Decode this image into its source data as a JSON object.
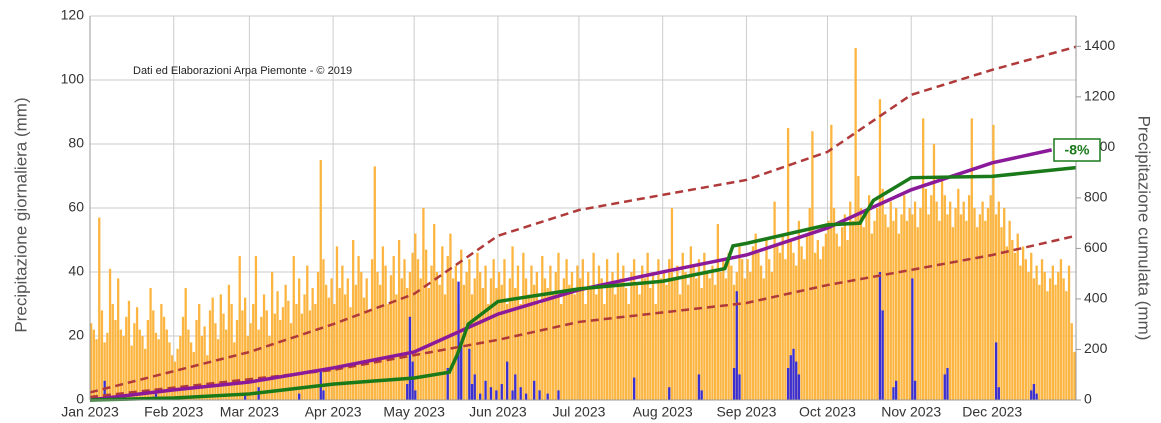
{
  "chart_data": {
    "type": "bar",
    "annotations": [
      "Dati ed Elaborazioni Arpa Piemonte - © 2019",
      "-8%"
    ],
    "ylabel": "Precipitazione giornaliera (mm)",
    "y2label": "Precipitazione cumulata (mm)",
    "xlim": [
      0,
      365
    ],
    "xticks": [
      {
        "value": 0,
        "label": "Jan 2023"
      },
      {
        "value": 31,
        "label": "Feb 2023"
      },
      {
        "value": 59,
        "label": "Mar 2023"
      },
      {
        "value": 90,
        "label": "Apr 2023"
      },
      {
        "value": 120,
        "label": "May 2023"
      },
      {
        "value": 151,
        "label": "Jun 2023"
      },
      {
        "value": 181,
        "label": "Jul 2023"
      },
      {
        "value": 212,
        "label": "Aug 2023"
      },
      {
        "value": 243,
        "label": "Sep 2023"
      },
      {
        "value": 273,
        "label": "Oct 2023"
      },
      {
        "value": 304,
        "label": "Nov 2023"
      },
      {
        "value": 334,
        "label": "Dec 2023"
      }
    ],
    "ylim": [
      0,
      120
    ],
    "yticks": [
      0,
      20,
      40,
      60,
      80,
      100,
      120
    ],
    "y2lim": [
      0,
      1520
    ],
    "y2ticks": [
      0,
      200,
      400,
      600,
      800,
      1000,
      1200,
      1400
    ],
    "grid": true,
    "series": [
      {
        "type": "bar",
        "color": "#fbb540",
        "values": [
          24,
          22,
          19,
          57,
          28,
          18,
          21,
          41,
          30,
          25,
          38,
          22,
          20,
          26,
          31,
          17,
          24,
          29,
          22,
          20,
          16,
          25,
          35,
          28,
          21,
          19,
          30,
          26,
          22,
          18,
          14,
          12,
          16,
          20,
          26,
          35,
          22,
          18,
          15,
          25,
          30,
          20,
          23,
          14,
          28,
          32,
          24,
          19,
          33,
          27,
          22,
          36,
          30,
          18,
          25,
          45,
          28,
          32,
          20,
          24,
          30,
          45,
          22,
          26,
          33,
          28,
          20,
          40,
          27,
          34,
          25,
          29,
          36,
          31,
          24,
          45,
          30,
          38,
          27,
          33,
          42,
          28,
          35,
          30,
          40,
          75,
          44,
          36,
          32,
          38,
          30,
          48,
          35,
          42,
          33,
          38,
          29,
          50,
          36,
          45,
          40,
          32,
          38,
          28,
          44,
          73,
          40,
          36,
          48,
          42,
          30,
          39,
          45,
          33,
          50,
          38,
          44,
          35,
          40,
          46,
          52,
          44,
          38,
          60,
          47,
          35,
          42,
          55,
          40,
          36,
          48,
          33,
          45,
          52,
          38,
          42,
          30,
          47,
          36,
          40,
          44,
          33,
          38,
          46,
          40,
          35,
          42,
          30,
          38,
          44,
          35,
          40,
          36,
          44,
          30,
          38,
          48,
          35,
          42,
          30,
          46,
          38,
          33,
          42,
          36,
          40,
          30,
          45,
          38,
          35,
          42,
          33,
          40,
          46,
          30,
          38,
          44,
          36,
          40,
          33,
          42,
          38,
          44,
          30,
          40,
          35,
          46,
          33,
          42,
          38,
          30,
          44,
          36,
          40,
          33,
          46,
          38,
          42,
          35,
          30,
          40,
          44,
          36,
          33,
          42,
          38,
          46,
          35,
          40,
          30,
          44,
          38,
          40,
          36,
          44,
          60,
          38,
          42,
          33,
          46,
          40,
          36,
          48,
          42,
          38,
          44,
          35,
          46,
          40,
          38,
          42,
          36,
          55,
          40,
          44,
          38,
          46,
          42,
          36,
          40,
          48,
          44,
          38,
          44,
          40,
          48,
          52,
          46,
          42,
          38,
          50,
          44,
          40,
          62,
          48,
          46,
          52,
          44,
          85,
          50,
          46,
          42,
          56,
          48,
          44,
          52,
          60,
          84,
          46,
          50,
          44,
          48,
          52,
          56,
          86,
          60,
          52,
          48,
          54,
          58,
          50,
          62,
          56,
          110,
          70,
          60,
          54,
          58,
          64,
          52,
          56,
          60,
          94,
          66,
          58,
          54,
          62,
          56,
          60,
          52,
          58,
          64,
          56,
          60,
          58,
          62,
          54,
          60,
          88,
          66,
          58,
          64,
          80,
          62,
          56,
          70,
          64,
          58,
          62,
          54,
          60,
          66,
          58,
          62,
          56,
          64,
          88,
          60,
          54,
          58,
          62,
          56,
          60,
          64,
          86,
          58,
          62,
          54,
          60,
          48,
          56,
          50,
          46,
          52,
          42,
          48,
          44,
          40,
          46,
          38,
          42,
          36,
          44,
          40,
          34,
          38,
          42,
          36,
          40,
          44,
          38,
          34,
          42,
          24,
          15
        ]
      },
      {
        "type": "bar",
        "color": "#3b2fd1",
        "values": [
          0,
          0,
          0,
          0,
          0,
          6,
          0,
          0,
          0,
          0,
          0,
          0,
          0,
          0,
          0,
          0,
          0,
          0,
          0,
          0,
          0,
          0,
          0,
          1,
          2,
          0,
          0,
          0,
          0,
          0,
          0,
          0,
          0,
          0,
          0,
          0,
          0,
          0,
          0,
          0,
          0,
          0,
          0,
          0,
          0,
          0,
          0,
          0,
          0,
          0,
          0,
          0,
          0,
          0,
          0,
          0,
          0,
          2,
          0,
          0,
          0,
          0,
          4,
          0,
          0,
          0,
          0,
          0,
          0,
          0,
          0,
          0,
          0,
          0,
          0,
          0,
          0,
          2,
          0,
          0,
          0,
          0,
          0,
          0,
          0,
          9,
          3,
          0,
          0,
          0,
          0,
          0,
          0,
          0,
          0,
          0,
          0,
          0,
          0,
          0,
          0,
          0,
          0,
          0,
          0,
          0,
          0,
          0,
          0,
          0,
          0,
          0,
          0,
          0,
          0,
          0,
          0,
          5,
          26,
          12,
          3,
          0,
          0,
          0,
          0,
          0,
          0,
          0,
          0,
          0,
          0,
          0,
          10,
          0,
          0,
          0,
          37,
          18,
          0,
          0,
          16,
          5,
          8,
          0,
          2,
          0,
          6,
          0,
          4,
          0,
          3,
          0,
          5,
          0,
          12,
          0,
          3,
          8,
          0,
          4,
          0,
          2,
          0,
          0,
          6,
          0,
          3,
          0,
          0,
          2,
          0,
          0,
          0,
          3,
          0,
          0,
          0,
          0,
          0,
          0,
          0,
          0,
          0,
          0,
          0,
          0,
          0,
          0,
          0,
          0,
          0,
          0,
          0,
          0,
          0,
          0,
          0,
          0,
          0,
          0,
          0,
          7,
          0,
          0,
          0,
          0,
          0,
          0,
          0,
          0,
          0,
          0,
          0,
          0,
          4,
          0,
          0,
          0,
          0,
          0,
          0,
          0,
          0,
          0,
          0,
          8,
          3,
          0,
          0,
          0,
          0,
          0,
          0,
          0,
          0,
          0,
          0,
          0,
          10,
          34,
          8,
          0,
          0,
          0,
          0,
          0,
          0,
          0,
          0,
          0,
          0,
          0,
          0,
          0,
          0,
          0,
          0,
          0,
          10,
          14,
          16,
          12,
          8,
          0,
          0,
          0,
          0,
          0,
          0,
          0,
          0,
          0,
          0,
          0,
          0,
          0,
          0,
          0,
          0,
          0,
          0,
          0,
          0,
          0,
          0,
          0,
          0,
          0,
          0,
          0,
          0,
          0,
          40,
          28,
          0,
          0,
          0,
          4,
          6,
          0,
          0,
          0,
          0,
          0,
          38,
          6,
          0,
          0,
          0,
          0,
          0,
          0,
          0,
          0,
          0,
          0,
          8,
          10,
          0,
          0,
          0,
          0,
          0,
          0,
          0,
          0,
          0,
          0,
          0,
          0,
          0,
          0,
          0,
          0,
          0,
          18,
          4,
          0,
          0,
          0,
          0,
          0,
          0,
          0,
          0,
          0,
          0,
          0,
          3,
          5,
          2,
          0,
          0,
          0,
          0,
          0,
          0,
          0,
          0,
          0,
          0,
          0,
          0,
          0,
          0
        ]
      },
      {
        "type": "line",
        "axis": "y2",
        "color": "#b03a3a",
        "dashed": true,
        "x": [
          0,
          59,
          90,
          120,
          151,
          181,
          212,
          243,
          273,
          304,
          334,
          365
        ],
        "values": [
          30,
          190,
          300,
          420,
          650,
          752,
          812,
          871,
          982,
          1208,
          1307,
          1398
        ]
      },
      {
        "type": "line",
        "axis": "y2",
        "color": "#b03a3a",
        "dashed": true,
        "x": [
          0,
          90,
          151,
          181,
          243,
          273,
          304,
          334,
          365
        ],
        "values": [
          12,
          119,
          238,
          309,
          384,
          455,
          515,
          574,
          650
        ]
      },
      {
        "type": "line",
        "axis": "y2",
        "color": "#8b1a9b",
        "x": [
          0,
          31,
          59,
          90,
          120,
          151,
          181,
          212,
          243,
          273,
          304,
          334,
          356
        ],
        "values": [
          0,
          40,
          71,
          127,
          190,
          340,
          436,
          507,
          574,
          681,
          832,
          939,
          990
        ]
      },
      {
        "type": "line",
        "axis": "y2",
        "color": "#1a7a1a",
        "x": [
          0,
          31,
          59,
          90,
          120,
          133,
          136,
          140,
          151,
          181,
          212,
          235,
          238,
          243,
          273,
          285,
          290,
          304,
          334,
          365
        ],
        "values": [
          0,
          8,
          24,
          63,
          87,
          110,
          180,
          300,
          390,
          440,
          470,
          520,
          610,
          620,
          693,
          700,
          790,
          880,
          885,
          920
        ]
      }
    ]
  }
}
